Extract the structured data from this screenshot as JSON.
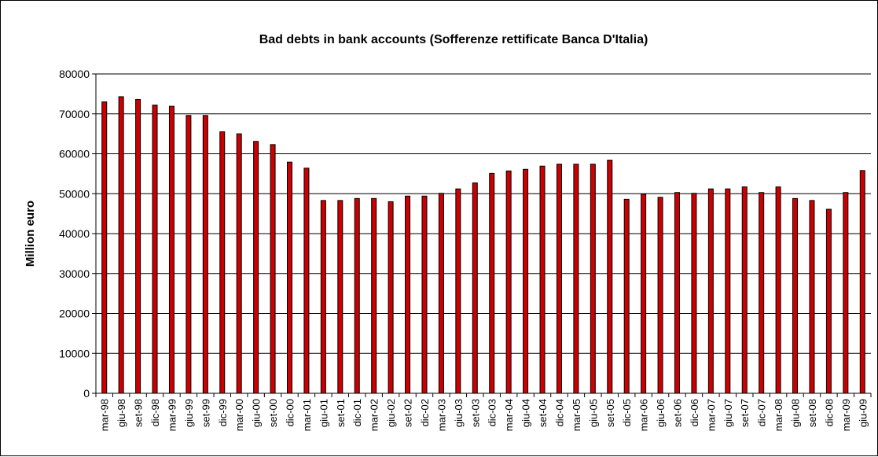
{
  "chart_data": {
    "type": "bar",
    "title": "Bad debts in bank accounts (Sofferenze rettificate Banca D'Italia)",
    "xlabel": "",
    "ylabel": "Million euro",
    "ylim": [
      0,
      80000
    ],
    "yticks": [
      "0",
      "10000",
      "20000",
      "30000",
      "40000",
      "50000",
      "60000",
      "70000",
      "80000"
    ],
    "grid": true,
    "legend": "none",
    "bar_color": "#cc0000",
    "bar_edge_color": "#000000",
    "categories": [
      "mar-98",
      "giu-98",
      "set-98",
      "dic-98",
      "mar-99",
      "giu-99",
      "set-99",
      "dic-99",
      "mar-00",
      "giu-00",
      "set-00",
      "dic-00",
      "mar-01",
      "giu-01",
      "set-01",
      "dic-01",
      "mar-02",
      "giu-02",
      "set-02",
      "dic-02",
      "mar-03",
      "giu-03",
      "set-03",
      "dic-03",
      "mar-04",
      "giu-04",
      "set-04",
      "dic-04",
      "mar-05",
      "giu-05",
      "set-05",
      "dic-05",
      "mar-06",
      "giu-06",
      "set-06",
      "dic-06",
      "mar-07",
      "giu-07",
      "set-07",
      "dic-07",
      "mar-08",
      "giu-08",
      "set-08",
      "dic-08",
      "mar-09",
      "giu-09"
    ],
    "values": [
      73000,
      74300,
      73600,
      72200,
      71900,
      69600,
      69600,
      65500,
      65000,
      63100,
      62300,
      57900,
      56400,
      48300,
      48300,
      48800,
      48800,
      48000,
      49400,
      49400,
      50100,
      51200,
      52700,
      55100,
      55700,
      56100,
      56900,
      57400,
      57400,
      57400,
      58400,
      48600,
      49900,
      49100,
      50300,
      50100,
      51200,
      51200,
      51700,
      50300,
      51700,
      48800,
      48300,
      46100,
      50300,
      55800
    ]
  }
}
